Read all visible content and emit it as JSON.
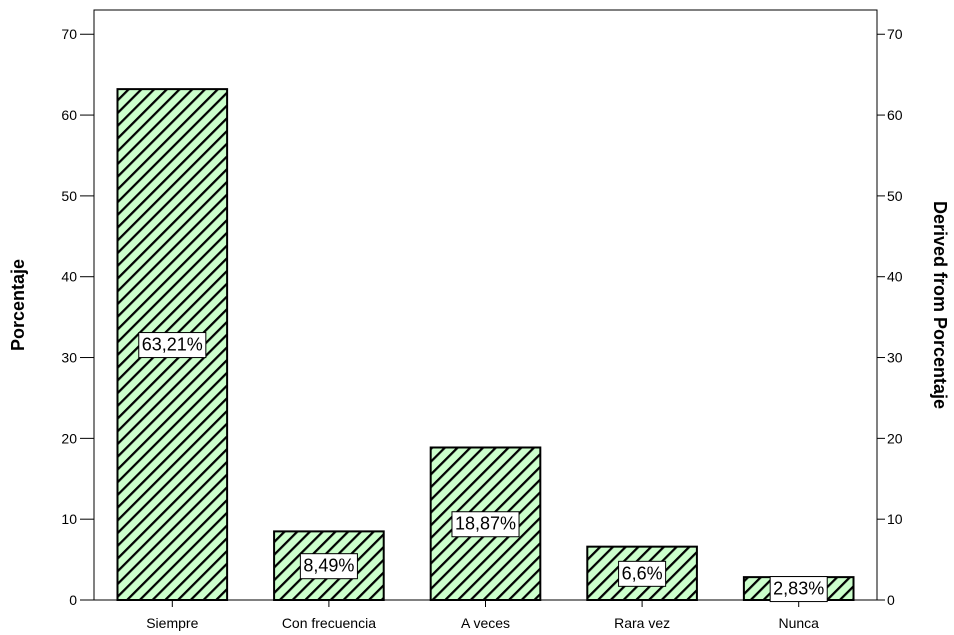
{
  "chart_data": {
    "type": "bar",
    "categories": [
      "Siempre",
      "Con frecuencia",
      "A veces",
      "Rara vez",
      "Nunca"
    ],
    "values": [
      63.21,
      8.49,
      18.87,
      6.6,
      2.83
    ],
    "data_labels": [
      "63,21%",
      "8,49%",
      "18,87%",
      "6,6%",
      "2,83%"
    ],
    "title": "",
    "xlabel": "",
    "ylabel": "Porcentaje",
    "y2label": "Derived from Porcentaje",
    "ylim": [
      0,
      73
    ],
    "yticks": [
      0,
      10,
      20,
      30,
      40,
      50,
      60,
      70
    ],
    "grid": false,
    "legend": "none",
    "bar_fill": "#ccffcc",
    "bar_hatch": "#000000",
    "bar_edge": "#000000"
  }
}
